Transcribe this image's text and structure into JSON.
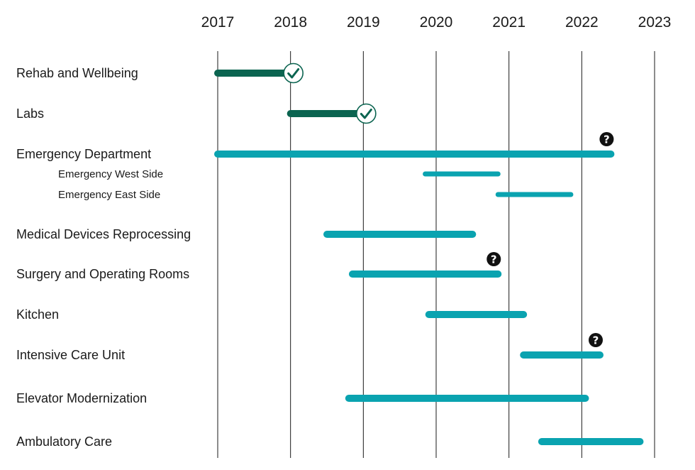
{
  "colors": {
    "completed": "#0b6450",
    "planned": "#0aa3b0",
    "grid": "#1a1a1a",
    "question_marker": "#111111"
  },
  "icons": {
    "completed_marker": "check-circle-icon",
    "uncertain_marker": "question-circle-icon"
  },
  "chart_data": {
    "type": "gantt",
    "x_axis": {
      "ticks": [
        "2017",
        "2018",
        "2019",
        "2020",
        "2021",
        "2022",
        "2023"
      ],
      "range": [
        2017,
        2023
      ],
      "position": "top",
      "grid": true
    },
    "tasks": [
      {
        "label": "Rehab and Wellbeing",
        "level": 0,
        "start": 2017.0,
        "end": 2018.0,
        "status": "completed",
        "marker": "check"
      },
      {
        "label": "Labs",
        "level": 0,
        "start": 2018.0,
        "end": 2019.0,
        "status": "completed",
        "marker": "check"
      },
      {
        "label": "Emergency Department",
        "level": 0,
        "start": 2017.0,
        "end": 2022.4,
        "status": "planned",
        "marker": "question"
      },
      {
        "label": "Emergency West Side",
        "level": 1,
        "start": 2019.85,
        "end": 2020.85,
        "status": "planned",
        "marker": null
      },
      {
        "label": "Emergency East Side",
        "level": 1,
        "start": 2020.85,
        "end": 2021.85,
        "status": "planned",
        "marker": null
      },
      {
        "label": "Medical Devices Reprocessing",
        "level": 0,
        "start": 2018.5,
        "end": 2020.5,
        "status": "planned",
        "marker": null
      },
      {
        "label": "Surgery and Operating Rooms",
        "level": 0,
        "start": 2018.85,
        "end": 2020.85,
        "status": "planned",
        "marker": "question"
      },
      {
        "label": "Kitchen",
        "level": 0,
        "start": 2019.9,
        "end": 2021.2,
        "status": "planned",
        "marker": null
      },
      {
        "label": "Intensive Care Unit",
        "level": 0,
        "start": 2021.2,
        "end": 2022.25,
        "status": "planned",
        "marker": "question"
      },
      {
        "label": "Elevator Modernization",
        "level": 0,
        "start": 2018.8,
        "end": 2022.05,
        "status": "planned",
        "marker": null
      },
      {
        "label": "Ambulatory Care",
        "level": 0,
        "start": 2021.45,
        "end": 2022.8,
        "status": "planned",
        "marker": null
      }
    ]
  }
}
